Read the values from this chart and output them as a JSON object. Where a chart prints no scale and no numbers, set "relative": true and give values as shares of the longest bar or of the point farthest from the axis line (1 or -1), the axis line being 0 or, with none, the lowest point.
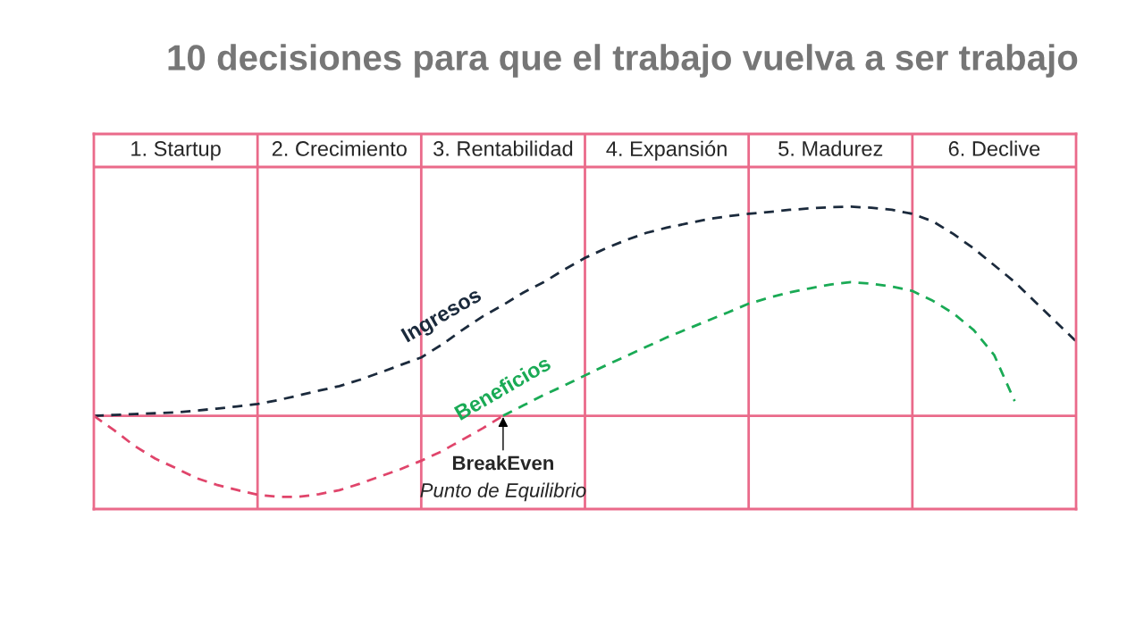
{
  "chart_data": {
    "type": "line",
    "title": "10 decisiones para que el trabajo vuelva a ser trabajo",
    "categories": [
      null,
      null,
      null,
      null,
      null,
      null,
      null,
      null,
      null,
      null,
      null,
      null,
      null,
      null,
      null,
      null,
      null,
      null,
      null,
      null,
      null,
      null,
      null,
      null,
      null,
      null,
      null,
      null,
      null,
      null,
      null,
      null,
      null,
      null,
      null,
      null,
      null,
      null,
      null,
      null,
      null,
      null,
      null,
      null,
      null,
      null,
      null,
      null,
      null
    ],
    "relative": true,
    "line_style": "dashed",
    "legend": false,
    "grid": true,
    "series": [
      {
        "name": "Ingresos",
        "color": "#1b2a3c",
        "values": [
          0,
          0.004,
          0.008,
          0.012,
          0.016,
          0.025,
          0.034,
          0.045,
          0.056,
          0.075,
          0.097,
          0.12,
          0.142,
          0.172,
          0.207,
          0.243,
          0.279,
          0.34,
          0.41,
          0.475,
          0.53,
          0.59,
          0.64,
          0.7,
          0.755,
          0.8,
          0.84,
          0.875,
          0.9,
          0.92,
          0.94,
          0.955,
          0.966,
          0.975,
          0.985,
          0.992,
          0.998,
          1.0,
          0.995,
          0.985,
          0.966,
          0.93,
          0.87,
          0.8,
          0.72,
          0.64,
          0.545,
          0.45,
          0.356
        ]
      },
      {
        "color": "#e0456b",
        "values": [
          0,
          -0.07,
          -0.145,
          -0.205,
          -0.25,
          -0.298,
          -0.33,
          -0.355,
          -0.378,
          -0.388,
          -0.388,
          -0.375,
          -0.356,
          -0.325,
          -0.29,
          -0.255,
          -0.215,
          -0.17,
          -0.115,
          -0.06,
          0,
          null,
          null,
          null,
          null,
          null,
          null,
          null,
          null,
          null,
          null,
          null,
          null,
          null,
          null,
          null,
          null,
          null,
          null,
          null,
          null,
          null,
          null,
          null,
          null,
          null,
          null,
          null,
          null
        ]
      },
      {
        "name": "Beneficios",
        "color": "#1aaa55",
        "values": [
          null,
          null,
          null,
          null,
          null,
          null,
          null,
          null,
          null,
          null,
          null,
          null,
          null,
          null,
          null,
          null,
          null,
          null,
          null,
          null,
          0,
          0.05,
          0.1,
          0.145,
          0.193,
          0.24,
          0.285,
          0.33,
          0.375,
          0.415,
          0.455,
          0.495,
          0.536,
          0.565,
          0.59,
          0.61,
          0.628,
          0.639,
          0.632,
          0.618,
          0.597,
          0.55,
          0.49,
          0.41,
          0.29,
          0.07,
          null,
          null,
          null
        ]
      }
    ],
    "annotations": [
      "1. Startup",
      "2. Crecimiento",
      "3. Rentabilidad",
      "4. Expansión",
      "5. Madurez",
      "6. Declive",
      "BreakEven",
      "Punto de Equilibrio"
    ]
  }
}
